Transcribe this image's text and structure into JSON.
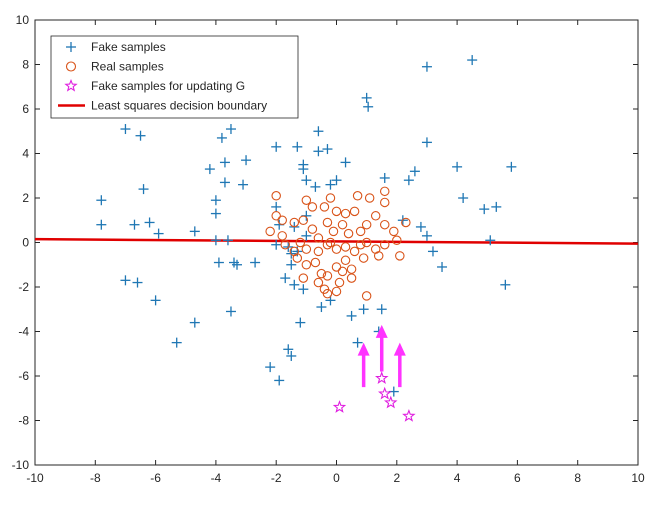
{
  "chart_data": {
    "type": "scatter",
    "title": "",
    "xlabel": "",
    "ylabel": "",
    "xlim": [
      -10,
      10
    ],
    "ylim": [
      -10,
      10
    ],
    "xticks": [
      -10,
      -8,
      -6,
      -4,
      -2,
      0,
      2,
      4,
      6,
      8,
      10
    ],
    "yticks": [
      -10,
      -8,
      -6,
      -4,
      -2,
      0,
      2,
      4,
      6,
      8,
      10
    ],
    "grid": false,
    "legend_position": "top-left",
    "legend": [
      {
        "label": "Fake samples",
        "marker": "plus",
        "color": "#1f77b4"
      },
      {
        "label": "Real samples",
        "marker": "circle",
        "color": "#d9541a"
      },
      {
        "label": "Fake samples for updating G",
        "marker": "star",
        "color": "#e020e0"
      },
      {
        "label": "Least squares decision boundary",
        "marker": "line",
        "color": "#e00000"
      }
    ],
    "fake_samples": [
      [
        4.5,
        8.2
      ],
      [
        3.0,
        7.9
      ],
      [
        1.0,
        6.5
      ],
      [
        1.05,
        6.1
      ],
      [
        3.0,
        4.5
      ],
      [
        -7.0,
        5.1
      ],
      [
        -6.5,
        4.8
      ],
      [
        -3.5,
        5.1
      ],
      [
        -3.8,
        4.7
      ],
      [
        -2.0,
        4.3
      ],
      [
        -1.3,
        4.3
      ],
      [
        -0.6,
        5.0
      ],
      [
        -0.6,
        4.1
      ],
      [
        -0.3,
        4.2
      ],
      [
        -3.0,
        3.7
      ],
      [
        -3.7,
        3.6
      ],
      [
        -4.2,
        3.3
      ],
      [
        -1.1,
        3.5
      ],
      [
        -1.1,
        3.3
      ],
      [
        0.3,
        3.6
      ],
      [
        -3.7,
        2.7
      ],
      [
        -3.1,
        2.6
      ],
      [
        -1.0,
        2.8
      ],
      [
        -0.7,
        2.5
      ],
      [
        -0.2,
        2.6
      ],
      [
        0.0,
        2.8
      ],
      [
        1.6,
        2.9
      ],
      [
        2.4,
        2.8
      ],
      [
        2.6,
        3.2
      ],
      [
        4.0,
        3.4
      ],
      [
        5.8,
        3.4
      ],
      [
        -7.8,
        1.9
      ],
      [
        -6.4,
        2.4
      ],
      [
        -4.0,
        1.9
      ],
      [
        -2.0,
        1.6
      ],
      [
        4.2,
        2.0
      ],
      [
        4.9,
        1.5
      ],
      [
        5.3,
        1.6
      ],
      [
        -4.0,
        1.3
      ],
      [
        -1.0,
        1.2
      ],
      [
        2.2,
        1.0
      ],
      [
        2.8,
        0.7
      ],
      [
        -7.8,
        0.8
      ],
      [
        -6.7,
        0.8
      ],
      [
        -6.2,
        0.9
      ],
      [
        -5.9,
        0.4
      ],
      [
        -4.7,
        0.5
      ],
      [
        -4.0,
        0.1
      ],
      [
        -3.6,
        0.1
      ],
      [
        -1.9,
        0.8
      ],
      [
        -1.4,
        0.7
      ],
      [
        -1.0,
        0.3
      ],
      [
        3.0,
        0.3
      ],
      [
        5.1,
        0.1
      ],
      [
        -2.0,
        -0.1
      ],
      [
        -1.6,
        -0.2
      ],
      [
        -1.3,
        -0.4
      ],
      [
        -1.5,
        -0.5
      ],
      [
        3.2,
        -0.4
      ],
      [
        -3.9,
        -0.9
      ],
      [
        -3.4,
        -0.9
      ],
      [
        -3.3,
        -1.0
      ],
      [
        -2.7,
        -0.9
      ],
      [
        -1.5,
        -1.0
      ],
      [
        -1.7,
        -1.6
      ],
      [
        -1.4,
        -1.9
      ],
      [
        3.5,
        -1.1
      ],
      [
        -7.0,
        -1.7
      ],
      [
        -6.6,
        -1.8
      ],
      [
        -6.0,
        -2.6
      ],
      [
        -1.1,
        -2.1
      ],
      [
        -0.2,
        -2.6
      ],
      [
        5.6,
        -1.9
      ],
      [
        -0.5,
        -2.9
      ],
      [
        -3.5,
        -3.1
      ],
      [
        -4.7,
        -3.6
      ],
      [
        -1.2,
        -3.6
      ],
      [
        0.5,
        -3.3
      ],
      [
        0.9,
        -3.0
      ],
      [
        1.5,
        -3.0
      ],
      [
        -5.3,
        -4.5
      ],
      [
        -1.6,
        -4.8
      ],
      [
        -1.5,
        -5.1
      ],
      [
        0.7,
        -4.5
      ],
      [
        -2.2,
        -5.6
      ],
      [
        -1.9,
        -6.2
      ],
      [
        1.9,
        -6.7
      ],
      [
        1.4,
        -4.0
      ]
    ],
    "real_samples": [
      [
        -2.0,
        2.1
      ],
      [
        -2.0,
        1.2
      ],
      [
        -1.8,
        1.0
      ],
      [
        -1.4,
        0.9
      ],
      [
        -1.1,
        1.0
      ],
      [
        -1.0,
        1.9
      ],
      [
        -0.8,
        1.6
      ],
      [
        -0.4,
        1.6
      ],
      [
        -0.2,
        2.0
      ],
      [
        0.7,
        2.1
      ],
      [
        1.1,
        2.0
      ],
      [
        1.6,
        2.3
      ],
      [
        1.6,
        1.8
      ],
      [
        0.0,
        1.4
      ],
      [
        0.3,
        1.3
      ],
      [
        0.6,
        1.4
      ],
      [
        1.3,
        1.2
      ],
      [
        1.6,
        0.8
      ],
      [
        2.3,
        0.9
      ],
      [
        -2.2,
        0.5
      ],
      [
        -1.8,
        0.3
      ],
      [
        -1.7,
        -0.1
      ],
      [
        -1.2,
        0.0
      ],
      [
        -0.8,
        0.6
      ],
      [
        -0.6,
        0.2
      ],
      [
        -0.3,
        0.9
      ],
      [
        -0.1,
        0.5
      ],
      [
        0.2,
        0.8
      ],
      [
        0.4,
        0.4
      ],
      [
        0.8,
        0.5
      ],
      [
        1.0,
        0.8
      ],
      [
        1.9,
        0.5
      ],
      [
        2.0,
        0.1
      ],
      [
        -1.4,
        -0.4
      ],
      [
        -1.0,
        -0.3
      ],
      [
        -0.6,
        -0.4
      ],
      [
        -0.3,
        -0.1
      ],
      [
        0.0,
        -0.3
      ],
      [
        0.3,
        -0.2
      ],
      [
        0.6,
        -0.4
      ],
      [
        1.0,
        0.0
      ],
      [
        1.3,
        -0.3
      ],
      [
        1.6,
        -0.1
      ],
      [
        2.1,
        -0.6
      ],
      [
        -1.3,
        -0.7
      ],
      [
        -1.0,
        -1.0
      ],
      [
        -0.7,
        -0.9
      ],
      [
        -0.5,
        -1.4
      ],
      [
        0.0,
        -1.1
      ],
      [
        0.3,
        -0.8
      ],
      [
        0.5,
        -1.2
      ],
      [
        0.9,
        -0.7
      ],
      [
        1.4,
        -0.6
      ],
      [
        -1.1,
        -1.6
      ],
      [
        -0.6,
        -1.8
      ],
      [
        -0.3,
        -1.5
      ],
      [
        0.1,
        -1.8
      ],
      [
        0.5,
        -1.6
      ],
      [
        -0.4,
        -2.1
      ],
      [
        -0.3,
        -2.3
      ],
      [
        0.0,
        -2.2
      ],
      [
        1.0,
        -2.4
      ],
      [
        0.2,
        -1.3
      ],
      [
        -0.2,
        0.0
      ],
      [
        0.8,
        -0.1
      ]
    ],
    "fake_samples_for_updating_G": [
      [
        0.1,
        -7.4
      ],
      [
        1.5,
        -6.1
      ],
      [
        1.6,
        -6.8
      ],
      [
        1.8,
        -7.2
      ],
      [
        2.4,
        -7.8
      ]
    ],
    "arrows": [
      {
        "from": [
          0.9,
          -6.5
        ],
        "to": [
          0.9,
          -4.5
        ]
      },
      {
        "from": [
          1.5,
          -5.8
        ],
        "to": [
          1.5,
          -3.7
        ]
      },
      {
        "from": [
          2.1,
          -6.5
        ],
        "to": [
          2.1,
          -4.5
        ]
      }
    ],
    "arrow_color": "#ff33ff",
    "decision_boundary": {
      "x": [
        -10,
        10
      ],
      "y": [
        0.15,
        -0.05
      ],
      "color": "#e00000"
    }
  }
}
